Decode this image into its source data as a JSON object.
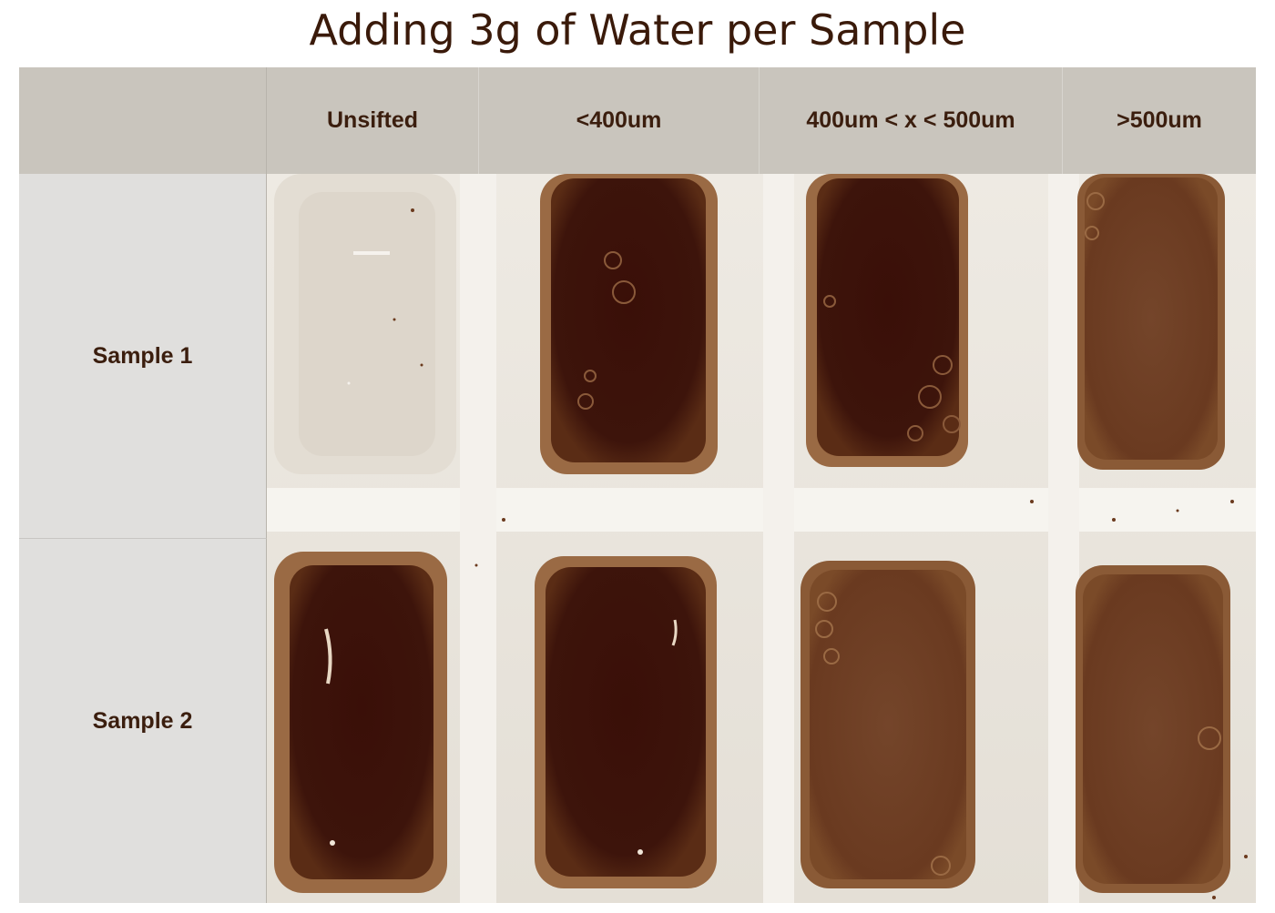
{
  "title": "Adding 3g of Water per Sample",
  "columns": [
    {
      "label": "Unsifted"
    },
    {
      "label": "<400um"
    },
    {
      "label": "400um < x < 500um"
    },
    {
      "label": ">500um"
    }
  ],
  "rows": [
    {
      "label": "Sample 1"
    },
    {
      "label": "Sample 2"
    }
  ],
  "colors": {
    "title": "#3a1a0a",
    "header_bg": "#c9c5bd",
    "row_header_bg": "#e0dfdd",
    "tray": "#ebe7e0",
    "coffee_dark": "#3b120a",
    "coffee_medium": "#6e3d22",
    "coffee_rim": "#9a6a44",
    "pale_water": "#ddd6cb"
  }
}
